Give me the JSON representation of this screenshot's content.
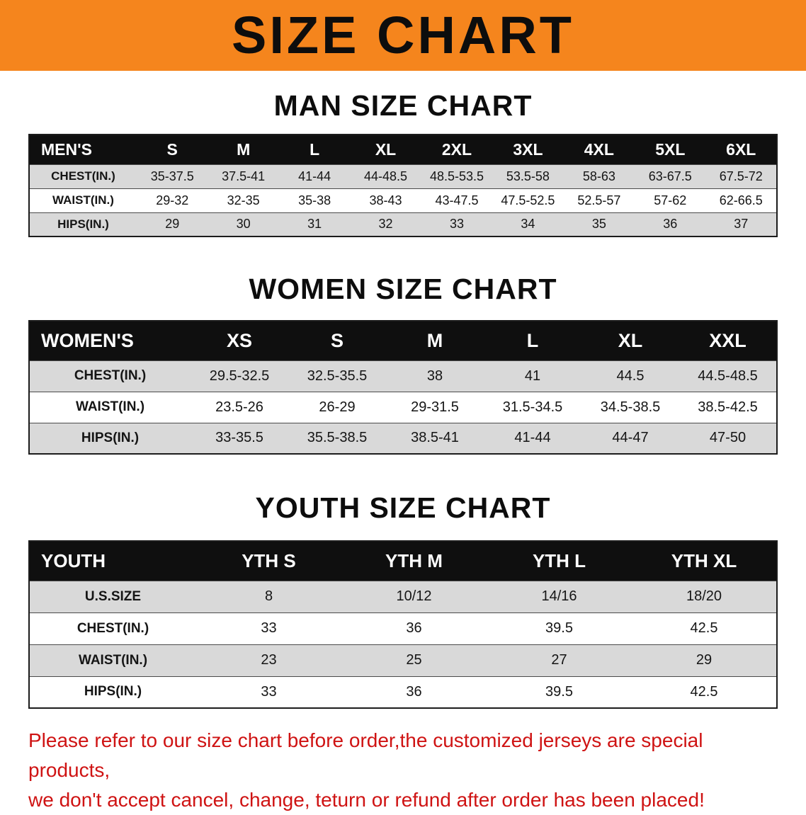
{
  "banner": {
    "title": "SIZE CHART"
  },
  "colors": {
    "banner_bg": "#f5851d",
    "table_header_bg": "#0f0f0f",
    "row_stripe": "#d9d9d9",
    "disclaimer_red": "#cf1313"
  },
  "men": {
    "heading": "MAN SIZE CHART",
    "table": {
      "header": [
        "MEN'S",
        "S",
        "M",
        "L",
        "XL",
        "2XL",
        "3XL",
        "4XL",
        "5XL",
        "6XL"
      ],
      "rows": [
        [
          "CHEST(IN.)",
          "35-37.5",
          "37.5-41",
          "41-44",
          "44-48.5",
          "48.5-53.5",
          "53.5-58",
          "58-63",
          "63-67.5",
          "67.5-72"
        ],
        [
          "WAIST(IN.)",
          "29-32",
          "32-35",
          "35-38",
          "38-43",
          "43-47.5",
          "47.5-52.5",
          "52.5-57",
          "57-62",
          "62-66.5"
        ],
        [
          "HIPS(IN.)",
          "29",
          "30",
          "31",
          "32",
          "33",
          "34",
          "35",
          "36",
          "37"
        ]
      ]
    }
  },
  "women": {
    "heading": "WOMEN SIZE CHART",
    "table": {
      "header": [
        "WOMEN'S",
        "XS",
        "S",
        "M",
        "L",
        "XL",
        "XXL"
      ],
      "rows": [
        [
          "CHEST(IN.)",
          "29.5-32.5",
          "32.5-35.5",
          "38",
          "41",
          "44.5",
          "44.5-48.5"
        ],
        [
          "WAIST(IN.)",
          "23.5-26",
          "26-29",
          "29-31.5",
          "31.5-34.5",
          "34.5-38.5",
          "38.5-42.5"
        ],
        [
          "HIPS(IN.)",
          "33-35.5",
          "35.5-38.5",
          "38.5-41",
          "41-44",
          "44-47",
          "47-50"
        ]
      ]
    }
  },
  "youth": {
    "heading": "YOUTH SIZE CHART",
    "table": {
      "header": [
        "YOUTH",
        "YTH S",
        "YTH M",
        "YTH L",
        "YTH XL"
      ],
      "rows": [
        [
          "U.S.SIZE",
          "8",
          "10/12",
          "14/16",
          "18/20"
        ],
        [
          "CHEST(IN.)",
          "33",
          "36",
          "39.5",
          "42.5"
        ],
        [
          "WAIST(IN.)",
          "23",
          "25",
          "27",
          "29"
        ],
        [
          "HIPS(IN.)",
          "33",
          "36",
          "39.5",
          "42.5"
        ]
      ]
    }
  },
  "disclaimer": {
    "line1": "Please refer to our size chart before order,the customized jerseys are special products,",
    "line2": "we don't accept cancel, change, teturn or refund after order has been placed!"
  }
}
